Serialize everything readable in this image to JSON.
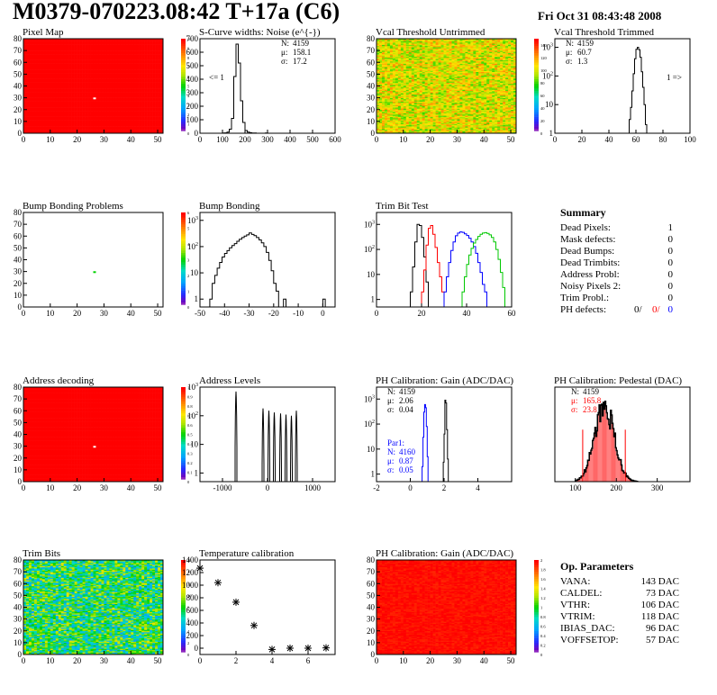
{
  "header": {
    "title": "M0379-070223.08:42 T+17a (C6)",
    "date": "Fri Oct 31 08:43:48 2008"
  },
  "colors": {
    "red": "#ff0000",
    "blue": "#0000ff",
    "green": "#00c800"
  },
  "chart_data": [
    {
      "id": "pixel-map",
      "type": "heatmap",
      "title": "Pixel Map",
      "xlim": [
        0,
        52
      ],
      "ylim": [
        0,
        80
      ],
      "xticks": [
        0,
        10,
        20,
        30,
        40,
        50
      ],
      "yticks": [
        0,
        10,
        20,
        30,
        40,
        50,
        60,
        70,
        80
      ],
      "zlim": [
        0,
        10
      ],
      "zticks": [
        0,
        1,
        2,
        3,
        4,
        5,
        6,
        7,
        8,
        9,
        10
      ],
      "fill_value": 10,
      "defect": {
        "x": 26.5,
        "y": 29.5,
        "value": 0
      }
    },
    {
      "id": "scurve-noise",
      "type": "histogram",
      "title": "S-Curve widths: Noise (e^{-})",
      "xlim": [
        0,
        600
      ],
      "ylim": [
        0,
        700
      ],
      "xticks": [
        0,
        100,
        200,
        300,
        400,
        500,
        600
      ],
      "yticks": [
        0,
        100,
        200,
        300,
        400,
        500,
        600,
        700
      ],
      "bins": [
        [
          100,
          1
        ],
        [
          110,
          3
        ],
        [
          120,
          8
        ],
        [
          130,
          30
        ],
        [
          140,
          110
        ],
        [
          150,
          420
        ],
        [
          160,
          660
        ],
        [
          170,
          520
        ],
        [
          180,
          240
        ],
        [
          190,
          80
        ],
        [
          200,
          20
        ],
        [
          210,
          8
        ],
        [
          220,
          4
        ],
        [
          230,
          2
        ],
        [
          240,
          1
        ],
        [
          290,
          1
        ]
      ],
      "binwidth": 10,
      "stats": [
        {
          "label": "N:",
          "value": "4159"
        },
        {
          "label": "μ:",
          "value": "158.1"
        },
        {
          "label": "σ:",
          "value": "17.2"
        }
      ],
      "annotation": "<= 1"
    },
    {
      "id": "vcal-untrimmed",
      "type": "heatmap",
      "title": "Vcal Threshold Untrimmed",
      "xlim": [
        0,
        52
      ],
      "ylim": [
        0,
        80
      ],
      "xticks": [
        0,
        10,
        20,
        30,
        40,
        50
      ],
      "yticks": [
        0,
        10,
        20,
        30,
        40,
        50,
        60,
        70,
        80
      ],
      "zlim": [
        0,
        150
      ],
      "zticks": [
        0,
        20,
        40,
        60,
        80,
        100,
        120,
        140
      ],
      "value_range": [
        80,
        125
      ]
    },
    {
      "id": "vcal-trimmed",
      "type": "histogram",
      "log_y": true,
      "title": "Vcal Threshold Trimmed",
      "xlim": [
        0,
        100
      ],
      "ylim": [
        1,
        2000
      ],
      "xticks": [
        0,
        20,
        40,
        60,
        80,
        100
      ],
      "yticks": [
        1,
        10,
        100,
        1000
      ],
      "bins": [
        [
          54,
          1
        ],
        [
          55,
          3
        ],
        [
          56,
          8
        ],
        [
          57,
          30
        ],
        [
          58,
          120
        ],
        [
          59,
          400
        ],
        [
          60,
          850
        ],
        [
          61,
          1000
        ],
        [
          62,
          820
        ],
        [
          63,
          450
        ],
        [
          64,
          140
        ],
        [
          65,
          40
        ],
        [
          66,
          10
        ],
        [
          67,
          2
        ]
      ],
      "binwidth": 1,
      "stats": [
        {
          "label": "N:",
          "value": "4159"
        },
        {
          "label": "μ:",
          "value": "60.7"
        },
        {
          "label": "σ:",
          "value": "1.3"
        }
      ],
      "annotation": "1 =>"
    },
    {
      "id": "bump-bonding-problems",
      "type": "heatmap",
      "title": "Bump Bonding Problems",
      "xlim": [
        0,
        52
      ],
      "ylim": [
        0,
        80
      ],
      "xticks": [
        0,
        10,
        20,
        30,
        40,
        50
      ],
      "yticks": [
        0,
        10,
        20,
        30,
        40,
        50,
        60,
        70,
        80
      ],
      "zlim": [
        0,
        6
      ],
      "zticks": [
        0,
        1,
        2,
        3,
        4,
        5,
        6
      ],
      "fill_value": null,
      "defect": {
        "x": 26.5,
        "y": 29.5,
        "value": 3
      }
    },
    {
      "id": "bump-bonding",
      "type": "histogram",
      "log_y": true,
      "title": "Bump Bonding",
      "xlim": [
        -50,
        5
      ],
      "ylim": [
        0.5,
        2000
      ],
      "xticks": [
        -50,
        -40,
        -30,
        -20,
        -10,
        0
      ],
      "yticks": [
        1,
        10,
        100,
        1000
      ],
      "bins": [
        [
          -46,
          1
        ],
        [
          -45,
          4
        ],
        [
          -44,
          8
        ],
        [
          -43,
          15
        ],
        [
          -42,
          25
        ],
        [
          -41,
          40
        ],
        [
          -40,
          55
        ],
        [
          -39,
          70
        ],
        [
          -38,
          90
        ],
        [
          -37,
          110
        ],
        [
          -36,
          130
        ],
        [
          -35,
          160
        ],
        [
          -34,
          190
        ],
        [
          -33,
          220
        ],
        [
          -32,
          250
        ],
        [
          -31,
          280
        ],
        [
          -30,
          330
        ],
        [
          -29,
          290
        ],
        [
          -28,
          260
        ],
        [
          -27,
          220
        ],
        [
          -26,
          180
        ],
        [
          -25,
          140
        ],
        [
          -24,
          100
        ],
        [
          -23,
          60
        ],
        [
          -22,
          30
        ],
        [
          -21,
          12
        ],
        [
          -20,
          4
        ],
        [
          -19,
          2
        ],
        [
          -16,
          1
        ],
        [
          0,
          1
        ]
      ],
      "binwidth": 1
    },
    {
      "id": "trim-bit-test",
      "type": "histogram",
      "log_y": true,
      "title": "Trim Bit Test",
      "xlim": [
        0,
        60
      ],
      "ylim": [
        0.5,
        3000
      ],
      "xticks": [
        0,
        20,
        40,
        60
      ],
      "yticks": [
        1,
        10,
        100,
        1000
      ],
      "series": [
        {
          "color": "#000000",
          "bins": [
            [
              15,
              2
            ],
            [
              16,
              20
            ],
            [
              17,
              200
            ],
            [
              18,
              1000
            ],
            [
              19,
              900
            ],
            [
              20,
              300
            ],
            [
              21,
              50
            ],
            [
              22,
              5
            ]
          ]
        },
        {
          "color": "#ff0000",
          "bins": [
            [
              20,
              2
            ],
            [
              21,
              15
            ],
            [
              22,
              150
            ],
            [
              23,
              700
            ],
            [
              24,
              900
            ],
            [
              25,
              400
            ],
            [
              26,
              120
            ],
            [
              27,
              30
            ],
            [
              28,
              8
            ],
            [
              29,
              2
            ]
          ]
        },
        {
          "color": "#0000ff",
          "bins": [
            [
              30,
              2
            ],
            [
              31,
              8
            ],
            [
              32,
              30
            ],
            [
              33,
              90
            ],
            [
              34,
              200
            ],
            [
              35,
              350
            ],
            [
              36,
              450
            ],
            [
              37,
              500
            ],
            [
              38,
              480
            ],
            [
              39,
              420
            ],
            [
              40,
              360
            ],
            [
              41,
              280
            ],
            [
              42,
              200
            ],
            [
              43,
              130
            ],
            [
              44,
              70
            ],
            [
              45,
              30
            ],
            [
              46,
              12
            ],
            [
              47,
              4
            ],
            [
              48,
              2
            ]
          ]
        },
        {
          "color": "#00c800",
          "bins": [
            [
              38,
              2
            ],
            [
              39,
              8
            ],
            [
              40,
              25
            ],
            [
              41,
              60
            ],
            [
              42,
              110
            ],
            [
              43,
              180
            ],
            [
              44,
              250
            ],
            [
              45,
              330
            ],
            [
              46,
              400
            ],
            [
              47,
              450
            ],
            [
              48,
              470
            ],
            [
              49,
              440
            ],
            [
              50,
              380
            ],
            [
              51,
              300
            ],
            [
              52,
              200
            ],
            [
              53,
              100
            ],
            [
              54,
              40
            ],
            [
              55,
              12
            ],
            [
              56,
              3
            ]
          ]
        }
      ]
    },
    {
      "id": "address-decoding",
      "type": "heatmap",
      "title": "Address decoding",
      "xlim": [
        0,
        52
      ],
      "ylim": [
        0,
        80
      ],
      "xticks": [
        0,
        10,
        20,
        30,
        40,
        50
      ],
      "yticks": [
        0,
        10,
        20,
        30,
        40,
        50,
        60,
        70,
        80
      ],
      "zlim": [
        0,
        1
      ],
      "zticks": [
        0,
        0.1,
        0.2,
        0.3,
        0.4,
        0.5,
        0.6,
        0.7,
        0.8,
        0.9,
        1
      ],
      "fill_value": 1,
      "defect": {
        "x": 26.5,
        "y": 29.5,
        "value": 0
      }
    },
    {
      "id": "address-levels",
      "type": "histogram",
      "log_y": true,
      "title": "Address Levels",
      "xlim": [
        -1500,
        1500
      ],
      "ylim": [
        0.5,
        1000
      ],
      "xticks": [
        -1000,
        0,
        1000
      ],
      "yticks": [
        1,
        10,
        100,
        1000
      ],
      "peaks": [
        [
          -700,
          700
        ],
        [
          -100,
          180
        ],
        [
          30,
          150
        ],
        [
          150,
          130
        ],
        [
          290,
          120
        ],
        [
          410,
          110
        ],
        [
          530,
          100
        ],
        [
          640,
          150
        ]
      ],
      "peak_halfwidth": 20
    },
    {
      "id": "ph-gain",
      "type": "histogram",
      "log_y": true,
      "title": "PH Calibration: Gain (ADC/DAC)",
      "xlim": [
        -2,
        6
      ],
      "ylim": [
        0.5,
        3000
      ],
      "xticks": [
        -2,
        0,
        2,
        4
      ],
      "yticks": [
        1,
        10,
        100,
        1000
      ],
      "series": [
        {
          "color": "#000000",
          "bins": [
            [
              1.95,
              3
            ],
            [
              2.0,
              40
            ],
            [
              2.05,
              900
            ],
            [
              2.1,
              700
            ],
            [
              2.15,
              60
            ],
            [
              2.2,
              4
            ]
          ]
        },
        {
          "color": "#0000ff",
          "bins": [
            [
              0.7,
              2
            ],
            [
              0.75,
              30
            ],
            [
              0.8,
              300
            ],
            [
              0.85,
              600
            ],
            [
              0.9,
              450
            ],
            [
              0.95,
              80
            ],
            [
              1.0,
              5
            ]
          ]
        }
      ],
      "binwidth": 0.05,
      "stats": [
        {
          "label": "N:",
          "value": "4159"
        },
        {
          "label": "μ:",
          "value": "2.06"
        },
        {
          "label": "σ:",
          "value": "0.04"
        }
      ],
      "stats2_title": "Par1:",
      "stats2": [
        {
          "label": "N:",
          "value": "4160"
        },
        {
          "label": "μ:",
          "value": "0.87"
        },
        {
          "label": "σ:",
          "value": "0.05"
        }
      ]
    },
    {
      "id": "ph-pedestal",
      "type": "histogram",
      "title": "PH Calibration: Pedestal (DAC)",
      "xlim": [
        50,
        380
      ],
      "ylim": [
        0,
        100
      ],
      "xticks": [
        100,
        200,
        300
      ],
      "gauss": {
        "mean": 170,
        "sigma": 24,
        "amplitude": 80
      },
      "red_lines": [
        118,
        222
      ],
      "stats": [
        {
          "label": "N:",
          "value": "4159"
        },
        {
          "label": "μ:",
          "value": "165.8"
        },
        {
          "label": "σ:",
          "value": "23.8"
        }
      ]
    },
    {
      "id": "trim-bits",
      "type": "heatmap",
      "title": "Trim Bits",
      "xlim": [
        0,
        52
      ],
      "ylim": [
        0,
        80
      ],
      "xticks": [
        0,
        10,
        20,
        30,
        40,
        50
      ],
      "yticks": [
        0,
        10,
        20,
        30,
        40,
        50,
        60,
        70,
        80
      ],
      "zlim": [
        0,
        16
      ],
      "zticks": [
        0,
        2,
        4,
        6,
        8,
        10,
        12,
        14,
        16
      ],
      "value_range": [
        4,
        11
      ]
    },
    {
      "id": "temperature-calibration",
      "type": "scatter",
      "title": "Temperature calibration",
      "xlim": [
        0,
        7.5
      ],
      "ylim": [
        -100,
        1400
      ],
      "xticks": [
        0,
        2,
        4,
        6
      ],
      "yticks": [
        0,
        200,
        400,
        600,
        800,
        1000,
        1200,
        1400
      ],
      "x": [
        0,
        1,
        2,
        3,
        4,
        5,
        6,
        7
      ],
      "y": [
        1270,
        1040,
        730,
        360,
        -20,
        0,
        0,
        5
      ]
    },
    {
      "id": "ph-gain-map",
      "type": "heatmap",
      "title": "PH Calibration: Gain (ADC/DAC)",
      "xlim": [
        0,
        52
      ],
      "ylim": [
        0,
        80
      ],
      "xticks": [
        0,
        10,
        20,
        30,
        40,
        50
      ],
      "yticks": [
        0,
        10,
        20,
        30,
        40,
        50,
        60,
        70,
        80
      ],
      "zlim": [
        0,
        2
      ],
      "zticks": [
        0,
        0.2,
        0.4,
        0.6,
        0.8,
        1,
        1.2,
        1.4,
        1.6,
        1.8,
        2
      ],
      "value_range": [
        1.55,
        2.0
      ]
    }
  ],
  "summary": {
    "title": "Summary",
    "rows": [
      {
        "label": "Dead Pixels:",
        "value": "1"
      },
      {
        "label": "Mask defects:",
        "value": "0"
      },
      {
        "label": "Dead Bumps:",
        "value": "0"
      },
      {
        "label": "Dead Trimbits:",
        "value": "0"
      },
      {
        "label": "Address Probl:",
        "value": "0"
      },
      {
        "label": "Noisy Pixels 2:",
        "value": "0"
      },
      {
        "label": "Trim Probl.:",
        "value": "0"
      }
    ],
    "ph_label": "PH defects:",
    "ph_values": [
      "0/",
      "0/",
      "0"
    ]
  },
  "parameters": {
    "title": "Op. Parameters",
    "rows": [
      {
        "label": "VANA:",
        "value": "143 DAC"
      },
      {
        "label": "CALDEL:",
        "value": "73 DAC"
      },
      {
        "label": "VTHR:",
        "value": "106 DAC"
      },
      {
        "label": "VTRIM:",
        "value": "118 DAC"
      },
      {
        "label": "IBIAS_DAC:",
        "value": "96 DAC"
      },
      {
        "label": "VOFFSETOP:",
        "value": "57 DAC"
      }
    ]
  }
}
